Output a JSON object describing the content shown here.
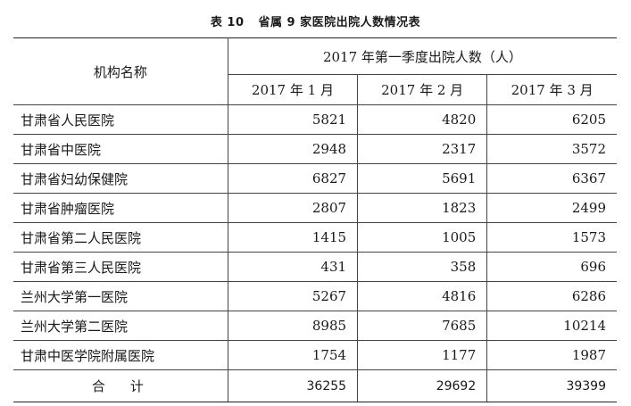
{
  "caption": {
    "table_no": "表 10",
    "title": "省属 9 家医院出院人数情况表"
  },
  "header": {
    "institution": "机构名称",
    "period": "2017 年第一季度出院人数（人）",
    "months": [
      "2017 年 1 月",
      "2017 年 2 月",
      "2017 年 3 月"
    ]
  },
  "rows": [
    {
      "name": "甘肃省人民医院",
      "values": [
        "5821",
        "4820",
        "6205"
      ]
    },
    {
      "name": "甘肃省中医院",
      "values": [
        "2948",
        "2317",
        "3572"
      ]
    },
    {
      "name": "甘肃省妇幼保健院",
      "values": [
        "6827",
        "5691",
        "6367"
      ]
    },
    {
      "name": "甘肃省肿瘤医院",
      "values": [
        "2807",
        "1823",
        "2499"
      ]
    },
    {
      "name": "甘肃省第二人民医院",
      "values": [
        "1415",
        "1005",
        "1573"
      ]
    },
    {
      "name": "甘肃省第三人民医院",
      "values": [
        "431",
        "358",
        "696"
      ]
    },
    {
      "name": "兰州大学第一医院",
      "values": [
        "5267",
        "4816",
        "6286"
      ]
    },
    {
      "name": "兰州大学第二医院",
      "values": [
        "8985",
        "7685",
        "10214"
      ]
    },
    {
      "name": "甘肃中医学院附属医院",
      "values": [
        "1754",
        "1177",
        "1987"
      ]
    }
  ],
  "total": {
    "label": "合计",
    "values": [
      "36255",
      "29692",
      "39399"
    ]
  }
}
